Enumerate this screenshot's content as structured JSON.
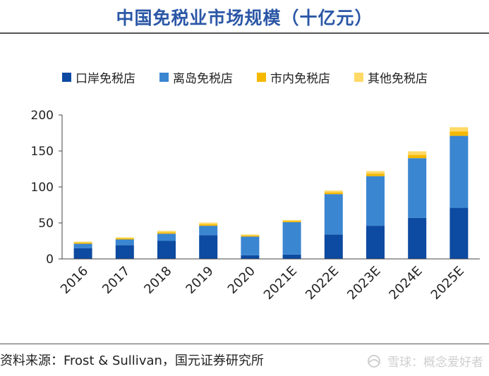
{
  "header": {
    "title": "中国免税业市场规模（十亿元）"
  },
  "footer": {
    "source": "资料来源：Frost & Sullivan，国元证券研究所",
    "watermark": "雪球：概念爱好者"
  },
  "colors": {
    "title": "#2b57a6",
    "series": [
      "#0d4aa1",
      "#3a86d1",
      "#f5b800",
      "#ffd966"
    ]
  },
  "chart_data": {
    "type": "bar",
    "stacked": true,
    "title": "中国免税业市场规模（十亿元）",
    "categories": [
      "2016",
      "2017",
      "2018",
      "2019",
      "2020",
      "2021E",
      "2022E",
      "2023E",
      "2024E",
      "2025E"
    ],
    "series": [
      {
        "name": "口岸免税店",
        "values": [
          15,
          19,
          25,
          33,
          5,
          6,
          34,
          46,
          57,
          71
        ]
      },
      {
        "name": "离岛免税店",
        "values": [
          6,
          8,
          10,
          13,
          26,
          45,
          56,
          69,
          83,
          100
        ]
      },
      {
        "name": "市内免税店",
        "values": [
          1.5,
          1.5,
          2,
          2,
          1.5,
          1.5,
          2.5,
          3.5,
          4.5,
          6
        ]
      },
      {
        "name": "其他免税店",
        "values": [
          1.5,
          1.5,
          2,
          2.5,
          1.5,
          1.5,
          2.5,
          3.5,
          5,
          6
        ]
      }
    ],
    "ylim": [
      0,
      200
    ],
    "yticks": [
      0,
      50,
      100,
      150,
      200
    ],
    "legend_position": "top",
    "grid": false
  }
}
